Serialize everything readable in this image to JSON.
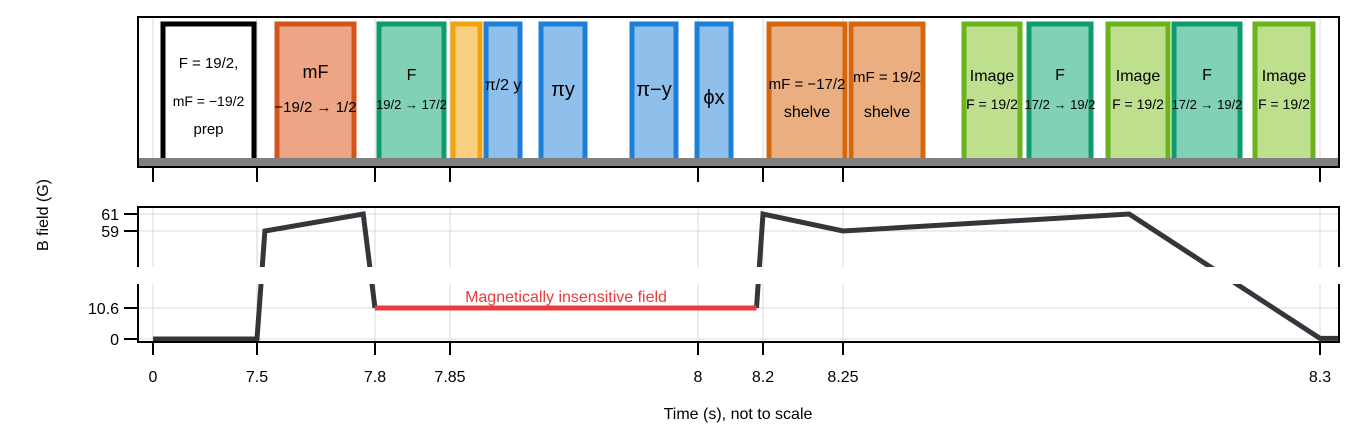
{
  "chart_data": {
    "type": "line",
    "xlabel": "Time (s), not to scale",
    "ylabel": "B field (G)",
    "x_ticks": [
      "0",
      "7.5",
      "7.8",
      "7.85",
      "8",
      "8.2",
      "8.25",
      "8.3"
    ],
    "y_ticks_upper": [
      "61",
      "59"
    ],
    "y_ticks_lower": [
      "10.6",
      "0"
    ],
    "annotation": "Magnetically insensitive field",
    "series": [
      {
        "segments": [
          [
            [
              0,
              0
            ],
            [
              7.5,
              0
            ],
            [
              7.52,
              59
            ],
            [
              7.77,
              61
            ],
            [
              7.8,
              10.6
            ]
          ],
          [
            [
              8.18,
              10.6
            ],
            [
              8.2,
              61
            ],
            [
              8.25,
              59
            ],
            [
              8.28,
              61
            ],
            [
              8.3,
              0.2
            ],
            [
              8.39,
              0.2
            ]
          ]
        ]
      },
      {
        "segments": [
          [
            [
              7.8,
              10.6
            ],
            [
              8.18,
              10.6
            ]
          ]
        ]
      }
    ],
    "pulses": [
      {
        "lines": [
          "F = 19/2,",
          "mF = −19/2",
          "prep"
        ],
        "color": "#000000",
        "fill": "#ffffff"
      },
      {
        "lines": [
          "mF",
          "−19/2 → 1/2"
        ],
        "color": "#d4541e",
        "fill": "#eda585"
      },
      {
        "lines": [
          "F",
          "19/2 → 17/2"
        ],
        "color": "#0e9b6e",
        "fill": "#80d1b8"
      },
      {
        "lines": [],
        "color": "#f2a20c",
        "fill": "#f9d07f"
      },
      {
        "lines": [
          "π/2 y"
        ],
        "color": "#1e7fd8",
        "fill": "#8fc0ec"
      },
      {
        "lines": [
          "πy"
        ],
        "color": "#1e7fd8",
        "fill": "#8fc0ec"
      },
      {
        "lines": [
          "π−y"
        ],
        "color": "#1e7fd8",
        "fill": "#8fc0ec"
      },
      {
        "lines": [
          "ϕx"
        ],
        "color": "#1e7fd8",
        "fill": "#8fc0ec"
      },
      {
        "lines": [
          "mF = −17/2",
          "shelve"
        ],
        "color": "#d4660e",
        "fill": "#eaae80"
      },
      {
        "lines": [
          "mF = 19/2",
          "shelve"
        ],
        "color": "#d4660e",
        "fill": "#eaae80"
      },
      {
        "lines": [
          "Image",
          "F = 19/2"
        ],
        "color": "#6ab31c",
        "fill": "#bddf8e"
      },
      {
        "lines": [
          "F",
          "17/2 → 19/2"
        ],
        "color": "#0e9b6e",
        "fill": "#80d1b8"
      },
      {
        "lines": [
          "Image",
          "F = 19/2"
        ],
        "color": "#6ab31c",
        "fill": "#bddf8e"
      },
      {
        "lines": [
          "F",
          "17/2 → 19/2"
        ],
        "color": "#0e9b6e",
        "fill": "#80d1b8"
      },
      {
        "lines": [
          "Image",
          "F = 19/2"
        ],
        "color": "#6ab31c",
        "fill": "#bddf8e"
      }
    ],
    "colors": {
      "line": "#33363b",
      "highlight": "#e83c3c"
    },
    "grid": true
  }
}
